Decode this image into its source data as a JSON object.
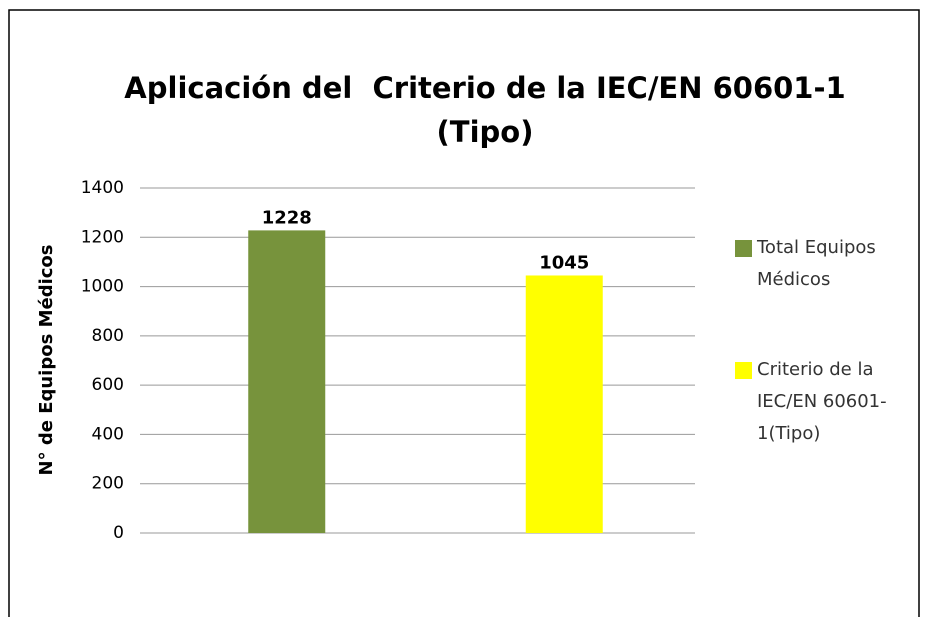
{
  "chart_data": {
    "type": "bar",
    "title": "Aplicación del  Criterio de la IEC/EN 60601-1 (Tipo)",
    "ylabel": "N° de Equipos Médicos",
    "categories": [
      null
    ],
    "series": [
      {
        "name": "Total Equipos Médicos",
        "color": "#77933c",
        "values": [
          1228
        ]
      },
      {
        "name": "Criterio de la IEC/EN 60601-1(Tipo)",
        "color": "#ffff00",
        "values": [
          1045
        ]
      }
    ],
    "ylim": [
      0,
      1400
    ],
    "yticks": [
      0,
      200,
      400,
      600,
      800,
      1000,
      1200,
      1400
    ],
    "grid": true,
    "legend": "right"
  }
}
